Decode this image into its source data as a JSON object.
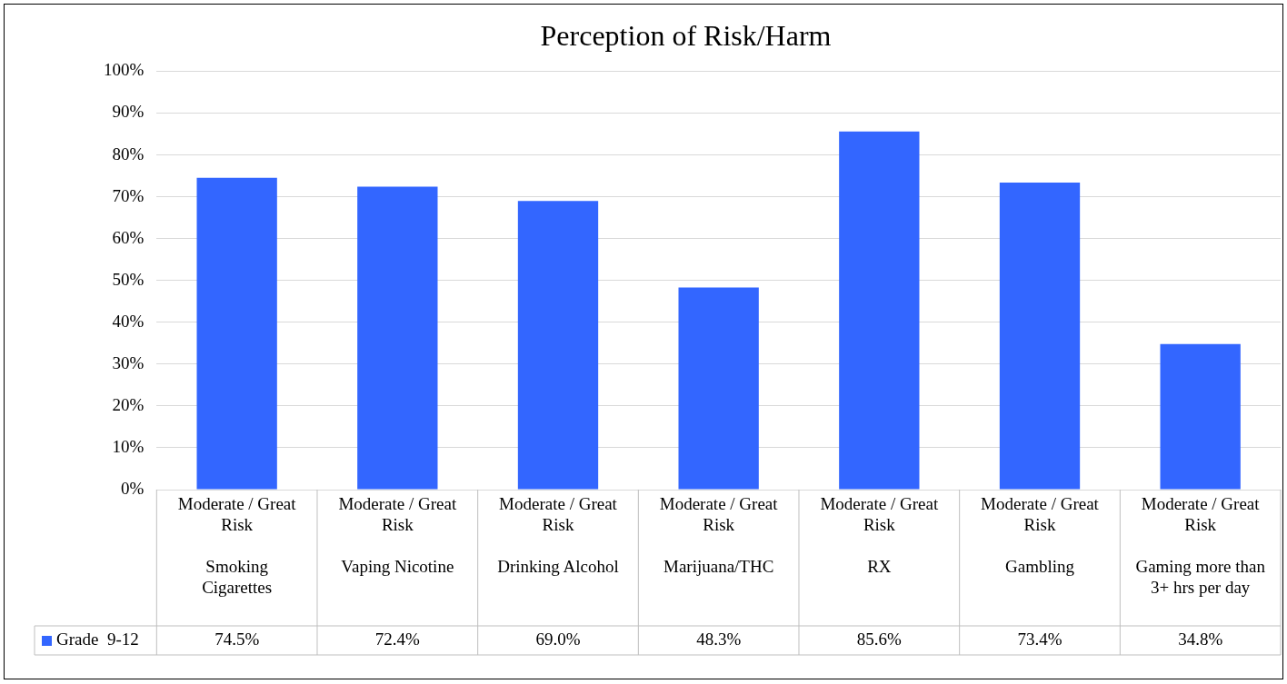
{
  "chart_data": {
    "type": "bar",
    "title": "Perception of Risk/Harm",
    "categories": [
      "Moderate / Great Risk\nSmoking Cigarettes",
      "Moderate / Great Risk\nVaping Nicotine",
      "Moderate / Great Risk\nDrinking Alcohol",
      "Moderate / Great Risk\nMarijuana/THC",
      "Moderate / Great Risk\nRX",
      "Moderate / Great Risk\nGambling",
      "Moderate / Great Risk\nGaming more than 3+ hrs per day"
    ],
    "series": [
      {
        "name": "Grade  9-12",
        "color": "#3366ff",
        "values": [
          74.5,
          72.4,
          69.0,
          48.3,
          85.6,
          73.4,
          34.8
        ],
        "value_labels": [
          "74.5%",
          "72.4%",
          "69.0%",
          "48.3%",
          "85.6%",
          "73.4%",
          "34.8%"
        ]
      }
    ],
    "ylim": [
      0,
      100
    ],
    "yticks": [
      {
        "value": 0,
        "label": "0%"
      },
      {
        "value": 10,
        "label": "10%"
      },
      {
        "value": 20,
        "label": "20%"
      },
      {
        "value": 30,
        "label": "30%"
      },
      {
        "value": 40,
        "label": "40%"
      },
      {
        "value": 50,
        "label": "50%"
      },
      {
        "value": 60,
        "label": "60%"
      },
      {
        "value": 70,
        "label": "70%"
      },
      {
        "value": 80,
        "label": "80%"
      },
      {
        "value": 90,
        "label": "90%"
      },
      {
        "value": 100,
        "label": "100%"
      }
    ],
    "grid": "y",
    "legend": "bottom left"
  }
}
